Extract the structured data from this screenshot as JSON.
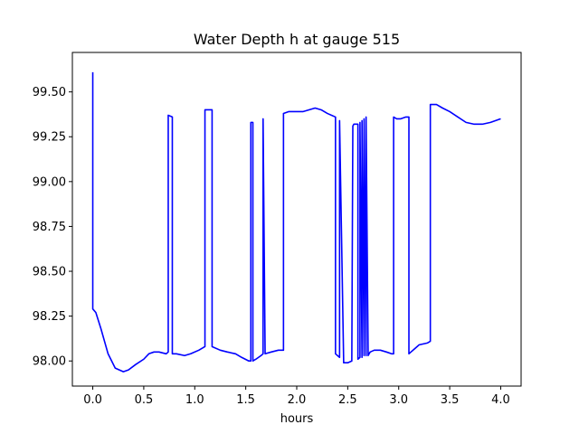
{
  "chart_data": {
    "type": "line",
    "title": "Water Depth h at gauge 515",
    "xlabel": "hours",
    "ylabel": "",
    "xlim": [
      -0.2,
      4.2
    ],
    "ylim": [
      97.86,
      99.72
    ],
    "xticks": [
      0.0,
      0.5,
      1.0,
      1.5,
      2.0,
      2.5,
      3.0,
      3.5,
      4.0
    ],
    "xtick_labels": [
      "0.0",
      "0.5",
      "1.0",
      "1.5",
      "2.0",
      "2.5",
      "3.0",
      "3.5",
      "4.0"
    ],
    "yticks": [
      98.0,
      98.25,
      98.5,
      98.75,
      99.0,
      99.25,
      99.5
    ],
    "ytick_labels": [
      "98.00",
      "98.25",
      "98.50",
      "98.75",
      "99.00",
      "99.25",
      "99.50"
    ],
    "grid": false,
    "series": [
      {
        "color": "#0000ff",
        "x": [
          0.0,
          0.0,
          0.03,
          0.08,
          0.15,
          0.22,
          0.3,
          0.35,
          0.42,
          0.5,
          0.55,
          0.6,
          0.65,
          0.72,
          0.74,
          0.74,
          0.78,
          0.78,
          0.82,
          0.9,
          0.96,
          1.04,
          1.1,
          1.1,
          1.17,
          1.17,
          1.25,
          1.32,
          1.4,
          1.46,
          1.53,
          1.55,
          1.55,
          1.57,
          1.57,
          1.6,
          1.65,
          1.67,
          1.67,
          1.69,
          1.75,
          1.82,
          1.87,
          1.87,
          1.92,
          1.99,
          2.06,
          2.12,
          2.18,
          2.24,
          2.3,
          2.38,
          2.38,
          2.42,
          2.42,
          2.46,
          2.46,
          2.5,
          2.54,
          2.55,
          2.56,
          2.6,
          2.6,
          2.62,
          2.62,
          2.64,
          2.64,
          2.66,
          2.66,
          2.68,
          2.68,
          2.7,
          2.7,
          2.72,
          2.76,
          2.82,
          2.88,
          2.93,
          2.95,
          2.95,
          2.98,
          3.02,
          3.07,
          3.1,
          3.1,
          3.12,
          3.16,
          3.2,
          3.28,
          3.31,
          3.31,
          3.37,
          3.43,
          3.5,
          3.58,
          3.66,
          3.74,
          3.82,
          3.9,
          4.0
        ],
        "y": [
          99.61,
          98.29,
          98.27,
          98.18,
          98.04,
          97.96,
          97.94,
          97.95,
          97.98,
          98.01,
          98.04,
          98.05,
          98.05,
          98.04,
          98.05,
          99.37,
          99.36,
          98.04,
          98.04,
          98.03,
          98.04,
          98.06,
          98.08,
          99.4,
          99.4,
          98.08,
          98.06,
          98.05,
          98.04,
          98.02,
          98.0,
          98.0,
          99.33,
          99.33,
          98.0,
          98.01,
          98.03,
          98.04,
          99.35,
          98.04,
          98.05,
          98.06,
          98.06,
          99.38,
          99.39,
          99.39,
          99.39,
          99.4,
          99.41,
          99.4,
          99.38,
          99.36,
          98.04,
          98.02,
          99.34,
          98.0,
          97.99,
          97.99,
          98.0,
          99.31,
          99.32,
          99.32,
          98.01,
          98.02,
          99.33,
          98.02,
          99.34,
          98.03,
          99.35,
          98.03,
          99.36,
          98.04,
          98.03,
          98.05,
          98.06,
          98.06,
          98.05,
          98.04,
          98.04,
          99.36,
          99.35,
          99.35,
          99.36,
          99.36,
          98.04,
          98.05,
          98.07,
          98.09,
          98.1,
          98.11,
          99.43,
          99.43,
          99.41,
          99.39,
          99.36,
          99.33,
          99.32,
          99.32,
          99.33,
          99.35
        ]
      }
    ]
  }
}
